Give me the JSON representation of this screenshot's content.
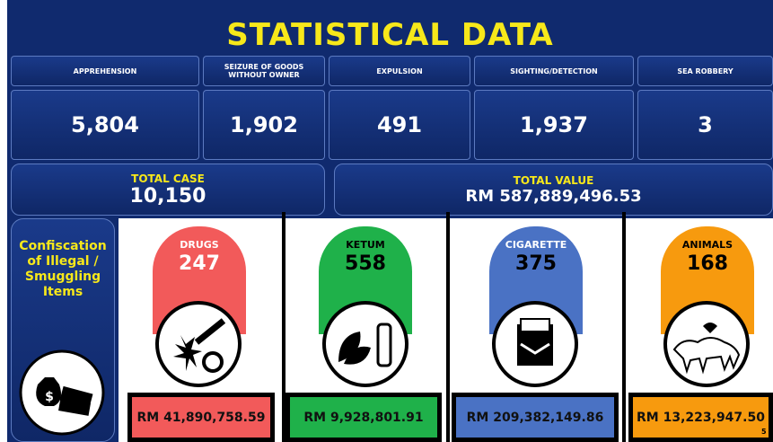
{
  "header": {
    "title": "STATISTICAL DATA"
  },
  "stats": [
    {
      "label": "APPREHENSION",
      "value": "5,804"
    },
    {
      "label": "SEIZURE OF GOODS WITHOUT OWNER",
      "value": "1,902"
    },
    {
      "label": "EXPULSION",
      "value": "491"
    },
    {
      "label": "SIGHTING/DETECTION",
      "value": "1,937"
    },
    {
      "label": "SEA ROBBERY",
      "value": "3"
    }
  ],
  "totals": {
    "case": {
      "label": "TOTAL CASE",
      "value": "10,150"
    },
    "value": {
      "label": "TOTAL VALUE",
      "value": "RM 587,889,496.53"
    }
  },
  "confiscation": {
    "title": "Confiscation of Illegal / Smuggling Items",
    "items": [
      {
        "name": "DRUGS",
        "count": "247",
        "value": "RM 41,890,758.59"
      },
      {
        "name": "KETUM",
        "count": "558",
        "value": "RM 9,928,801.91"
      },
      {
        "name": "CIGARETTE",
        "count": "375",
        "value": "RM 209,382,149.86"
      },
      {
        "name": "ANIMALS",
        "count": "168",
        "value": "RM 13,223,947.50"
      }
    ]
  },
  "page_number": "5"
}
